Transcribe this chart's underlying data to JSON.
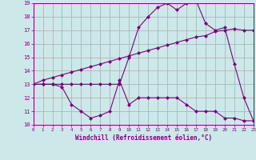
{
  "xlabel": "Windchill (Refroidissement éolien,°C)",
  "bg_color": "#cce8e8",
  "line_color": "#800080",
  "grid_color": "#aaaaaa",
  "xmin": 0,
  "xmax": 23,
  "ymin": 10,
  "ymax": 19,
  "x_hours": [
    0,
    1,
    2,
    3,
    4,
    5,
    6,
    7,
    8,
    9,
    10,
    11,
    12,
    13,
    14,
    15,
    16,
    17,
    18,
    19,
    20,
    21,
    22,
    23
  ],
  "y_temp": [
    13,
    13,
    13,
    13,
    13,
    13,
    13,
    13,
    13,
    13,
    15,
    17.2,
    18,
    18.7,
    19,
    18.5,
    19,
    19.2,
    17.5,
    17,
    17.2,
    14.5,
    12,
    10.3
  ],
  "y_wind": [
    13,
    13,
    13,
    12.8,
    11.5,
    11,
    10.5,
    10.7,
    11,
    13.3,
    11.5,
    12,
    12,
    12,
    12,
    12,
    11.5,
    11,
    11,
    11,
    10.5,
    10.5,
    10.3,
    10.3
  ],
  "y_line": [
    13,
    13.3,
    13.5,
    13.7,
    13.9,
    14.1,
    14.3,
    14.5,
    14.7,
    14.9,
    15.1,
    15.3,
    15.5,
    15.7,
    15.9,
    16.1,
    16.3,
    16.5,
    16.6,
    16.9,
    17.0,
    17.1,
    17.0,
    17.0
  ]
}
